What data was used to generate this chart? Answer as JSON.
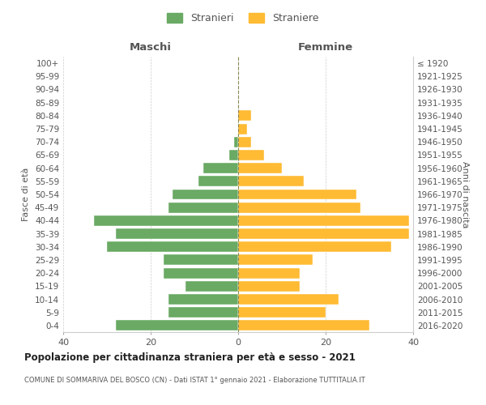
{
  "age_groups": [
    "0-4",
    "5-9",
    "10-14",
    "15-19",
    "20-24",
    "25-29",
    "30-34",
    "35-39",
    "40-44",
    "45-49",
    "50-54",
    "55-59",
    "60-64",
    "65-69",
    "70-74",
    "75-79",
    "80-84",
    "85-89",
    "90-94",
    "95-99",
    "100+"
  ],
  "birth_years": [
    "2016-2020",
    "2011-2015",
    "2006-2010",
    "2001-2005",
    "1996-2000",
    "1991-1995",
    "1986-1990",
    "1981-1985",
    "1976-1980",
    "1971-1975",
    "1966-1970",
    "1961-1965",
    "1956-1960",
    "1951-1955",
    "1946-1950",
    "1941-1945",
    "1936-1940",
    "1931-1935",
    "1926-1930",
    "1921-1925",
    "≤ 1920"
  ],
  "maschi": [
    28,
    16,
    16,
    12,
    17,
    17,
    30,
    28,
    33,
    16,
    15,
    9,
    8,
    2,
    1,
    0,
    0,
    0,
    0,
    0,
    0
  ],
  "femmine": [
    30,
    20,
    23,
    14,
    14,
    17,
    35,
    39,
    39,
    28,
    27,
    15,
    10,
    6,
    3,
    2,
    3,
    0,
    0,
    0,
    0
  ],
  "color_maschi": "#6aaa64",
  "color_femmine": "#ffbb33",
  "title": "Popolazione per cittadinanza straniera per età e sesso - 2021",
  "subtitle": "COMUNE DI SOMMARIVA DEL BOSCO (CN) - Dati ISTAT 1° gennaio 2021 - Elaborazione TUTTITALIA.IT",
  "xlabel_left": "Maschi",
  "xlabel_right": "Femmine",
  "ylabel_left": "Fasce di età",
  "ylabel_right": "Anni di nascita",
  "legend_maschi": "Stranieri",
  "legend_femmine": "Straniere",
  "xlim": 40,
  "background_color": "#ffffff",
  "grid_color": "#cccccc"
}
